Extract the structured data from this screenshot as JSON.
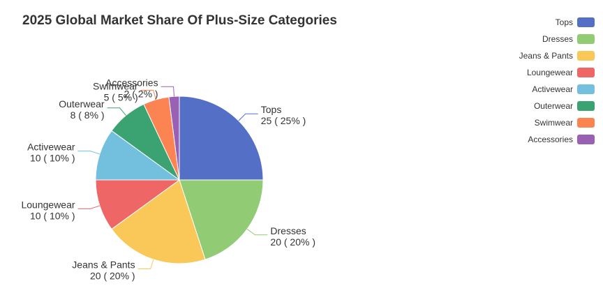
{
  "chart_data": {
    "type": "pie",
    "title": "2025 Global Market Share Of Plus-Size Categories",
    "categories": [
      "Tops",
      "Dresses",
      "Jeans & Pants",
      "Loungewear",
      "Activewear",
      "Outerwear",
      "Swimwear",
      "Accessories"
    ],
    "values": [
      25,
      20,
      20,
      10,
      10,
      8,
      5,
      2
    ],
    "percents": [
      25,
      20,
      20,
      10,
      10,
      8,
      5,
      2
    ],
    "colors": [
      "#5470c6",
      "#91cc75",
      "#fac858",
      "#ee6666",
      "#73c0de",
      "#3ba272",
      "#fc8452",
      "#9a60b4"
    ],
    "legend_position": "top-right"
  }
}
